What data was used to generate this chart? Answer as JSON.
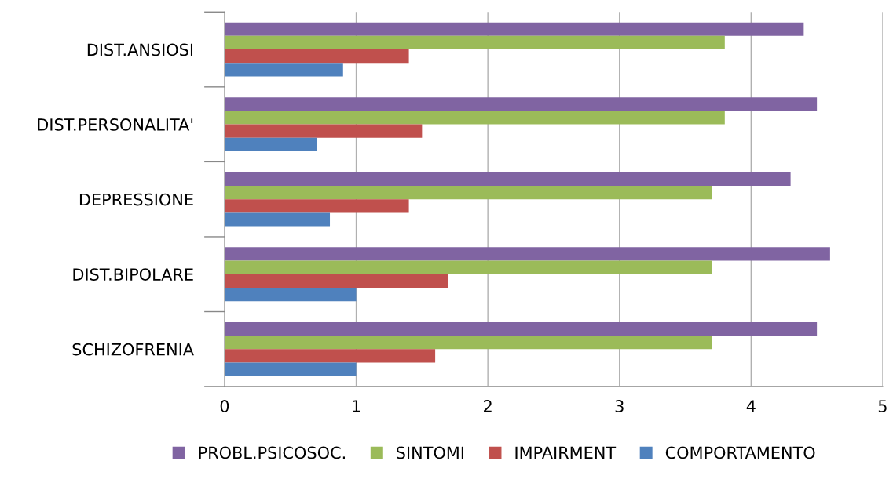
{
  "chart_data": {
    "type": "bar",
    "orientation": "horizontal",
    "categories": [
      "DIST.ANSIOSI",
      "DIST.PERSONALITA'",
      "DEPRESSIONE",
      "DIST.BIPOLARE",
      "SCHIZOFRENIA"
    ],
    "series": [
      {
        "name": "PROBL.PSICOSOC.",
        "color": "#8064a2",
        "values": [
          4.4,
          4.5,
          4.3,
          4.6,
          4.5
        ]
      },
      {
        "name": "SINTOMI",
        "color": "#9bbb59",
        "values": [
          3.8,
          3.8,
          3.7,
          3.7,
          3.7
        ]
      },
      {
        "name": "IMPAIRMENT",
        "color": "#c0504d",
        "values": [
          1.4,
          1.5,
          1.4,
          1.7,
          1.6
        ]
      },
      {
        "name": "COMPORTAMENTO",
        "color": "#4f81bd",
        "values": [
          0.9,
          0.7,
          0.8,
          1.0,
          1.0
        ]
      }
    ],
    "xlim": [
      0,
      5
    ],
    "xticks": [
      0,
      1,
      2,
      3,
      4,
      5
    ],
    "grid": "x",
    "legend": "bottom"
  }
}
